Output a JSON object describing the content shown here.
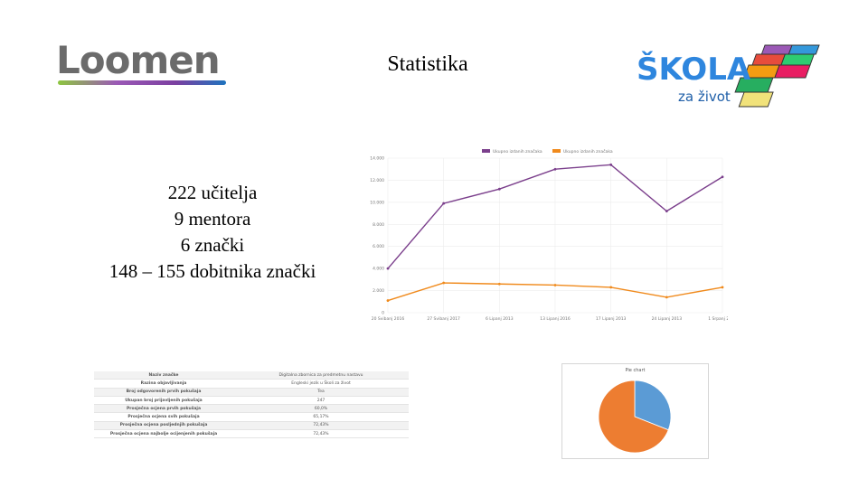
{
  "logos": {
    "loomen": "Loomen",
    "skola_main": "ŠKOLA",
    "skola_sub": "za život"
  },
  "title": "Statistika",
  "stats": [
    "222 učitelja",
    "9 mentora",
    "6 znački",
    "148 – 155 dobitnika znački"
  ],
  "colors": {
    "series1": "#7b3f8c",
    "series2": "#f08a1c",
    "pie_blue": "#5b9bd5",
    "pie_orange": "#ed7d31"
  },
  "chart_data": [
    {
      "type": "line",
      "legend": [
        "Ukupno izdanih značaka",
        "Ukupno izdanih značaka"
      ],
      "categories": [
        "20 Svibanj 2016",
        "27 Svibanj 2017",
        "6 Lipanj 2013",
        "13 Lipanj 2016",
        "17 Lipanj 2013",
        "24 Lipanj 2013",
        "1 Srpanj 2013"
      ],
      "y_ticks": [
        "0",
        "2.000",
        "4.000",
        "6.000",
        "8.000",
        "10.000",
        "12.000",
        "14.000"
      ],
      "ylim": [
        0,
        14000
      ],
      "series": [
        {
          "values": [
            4000,
            9900,
            11200,
            13000,
            13400,
            9200,
            12300
          ]
        },
        {
          "values": [
            1100,
            2700,
            2600,
            2500,
            2300,
            1400,
            2300
          ]
        }
      ],
      "legend_placement": "top",
      "grid": true
    },
    {
      "type": "pie",
      "title": "Pie chart",
      "values": [
        31,
        69
      ],
      "colors": [
        "#5b9bd5",
        "#ed7d31"
      ]
    }
  ],
  "table": {
    "rows": [
      {
        "label": "Naziv značke",
        "value": "Digitalna zbornica za predmetnu nastavu"
      },
      {
        "label": "Razina objavljivanja",
        "value": "Engleski jezik u Školi za život"
      },
      {
        "label": "Broj odgovorenih prvih pokušaja",
        "value": "Tea"
      },
      {
        "label": "Ukupan broj prijavljenih pokušaja",
        "value": "247"
      },
      {
        "label": "Prosječna ocjena prvih pokušaja",
        "value": "60,0%"
      },
      {
        "label": "Prosječna ocjena svih pokušaja",
        "value": "65,17%"
      },
      {
        "label": "Prosječna ocjena posljednjih pokušaja",
        "value": "72,43%"
      },
      {
        "label": "Prosječna ocjena najbolje ocijenjenih pokušaja",
        "value": "72,43%"
      }
    ]
  }
}
